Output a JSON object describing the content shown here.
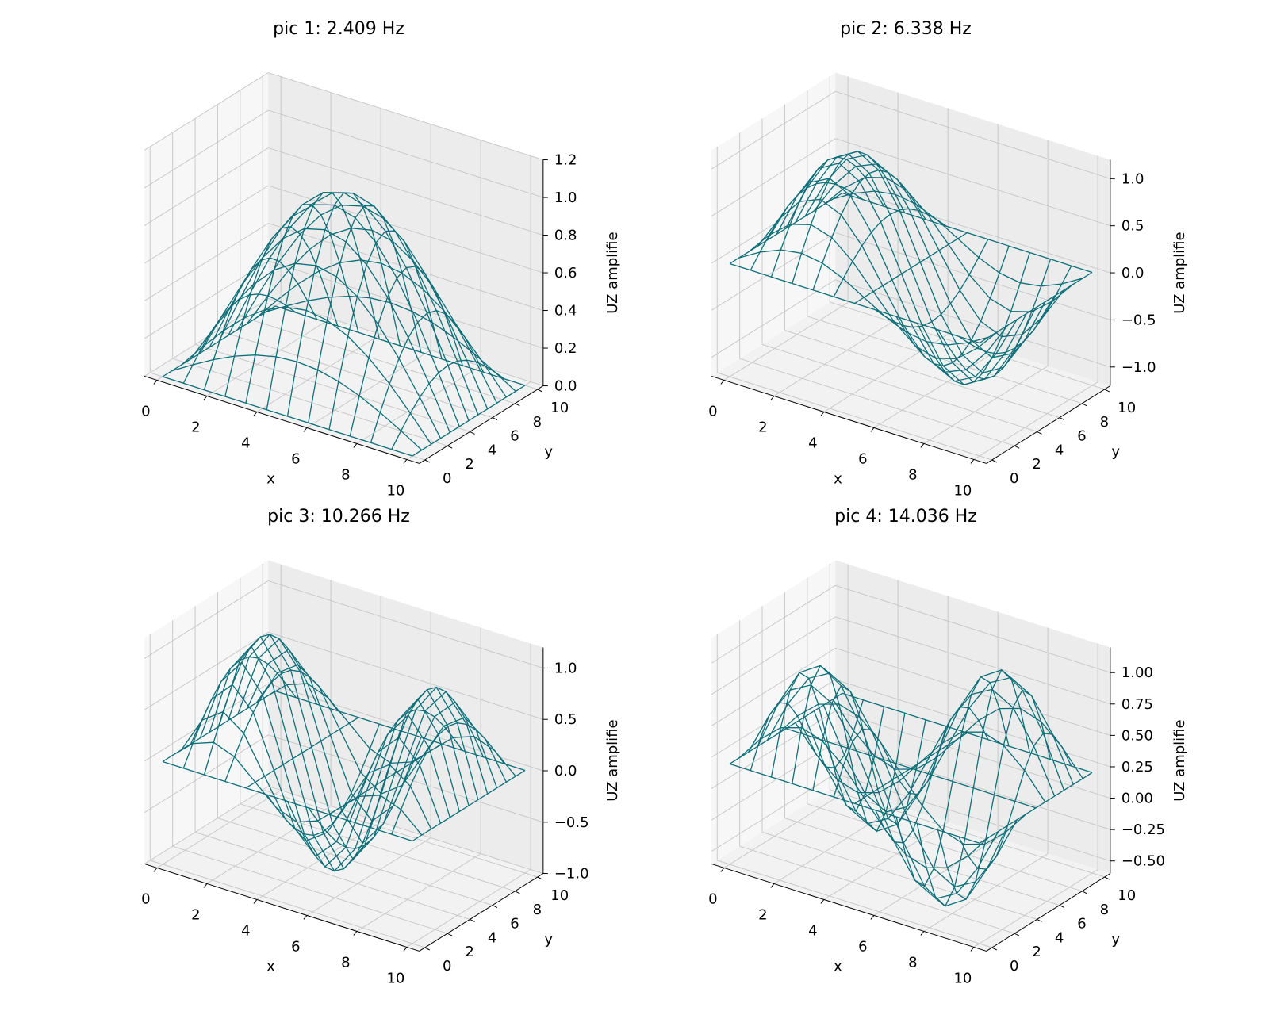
{
  "colors": {
    "wire": "#0b6e78",
    "grid": "#c9c9c9",
    "pane_left": "#f7f7f7",
    "pane_back": "#ececec",
    "pane_floor": "#f2f2f2",
    "axis_line": "#000000"
  },
  "chart_data": [
    {
      "type": "surface",
      "title": "pic 1: 2.409 Hz",
      "xlabel": "x",
      "ylabel": "y",
      "zlabel": "UZ amplifie",
      "xlim": [
        0,
        10
      ],
      "ylim": [
        0,
        10
      ],
      "zlim": [
        0.0,
        1.2
      ],
      "xticks": [
        "0",
        "2",
        "4",
        "6",
        "8",
        "10"
      ],
      "yticks": [
        "0",
        "2",
        "4",
        "6",
        "8",
        "10"
      ],
      "zticks": [
        "0.0",
        "0.2",
        "0.4",
        "0.6",
        "0.8",
        "1.0",
        "1.2"
      ],
      "grid": true,
      "mode": {
        "m": 1,
        "n": 1
      },
      "z_range": [
        0.0,
        1.0
      ]
    },
    {
      "type": "surface",
      "title": "pic 2: 6.338 Hz",
      "xlabel": "x",
      "ylabel": "y",
      "zlabel": "UZ amplifie",
      "xlim": [
        0,
        10
      ],
      "ylim": [
        0,
        10
      ],
      "zlim": [
        -1.2,
        1.2
      ],
      "xticks": [
        "0",
        "2",
        "4",
        "6",
        "8",
        "10"
      ],
      "yticks": [
        "0",
        "2",
        "4",
        "6",
        "8",
        "10"
      ],
      "zticks": [
        "−1.0",
        "−0.5",
        "0.0",
        "0.5",
        "1.0"
      ],
      "grid": true,
      "mode": {
        "m": 2,
        "n": 1
      },
      "z_range": [
        -1.0,
        1.0
      ]
    },
    {
      "type": "surface",
      "title": "pic 3: 10.266 Hz",
      "xlabel": "x",
      "ylabel": "y",
      "zlabel": "UZ amplifie",
      "xlim": [
        0,
        10
      ],
      "ylim": [
        0,
        10
      ],
      "zlim": [
        -1.0,
        1.2
      ],
      "xticks": [
        "0",
        "2",
        "4",
        "6",
        "8",
        "10"
      ],
      "yticks": [
        "0",
        "2",
        "4",
        "6",
        "8",
        "10"
      ],
      "zticks": [
        "−1.0",
        "−0.5",
        "0.0",
        "0.5",
        "1.0"
      ],
      "grid": true,
      "mode": {
        "m": 3,
        "n": 1
      },
      "z_range": [
        -1.0,
        1.0
      ]
    },
    {
      "type": "surface",
      "title": "pic 4: 14.036 Hz",
      "xlabel": "x",
      "ylabel": "y",
      "zlabel": "UZ amplifie",
      "xlim": [
        0,
        10
      ],
      "ylim": [
        0,
        10
      ],
      "zlim": [
        -0.6,
        1.2
      ],
      "xticks": [
        "0",
        "2",
        "4",
        "6",
        "8",
        "10"
      ],
      "yticks": [
        "0",
        "2",
        "4",
        "6",
        "8",
        "10"
      ],
      "zticks": [
        "−0.50",
        "−0.25",
        "0.00",
        "0.25",
        "0.50",
        "0.75",
        "1.00"
      ],
      "grid": true,
      "mode": {
        "m": 2,
        "n": 2
      },
      "z_range": [
        -0.6,
        1.0
      ]
    }
  ]
}
